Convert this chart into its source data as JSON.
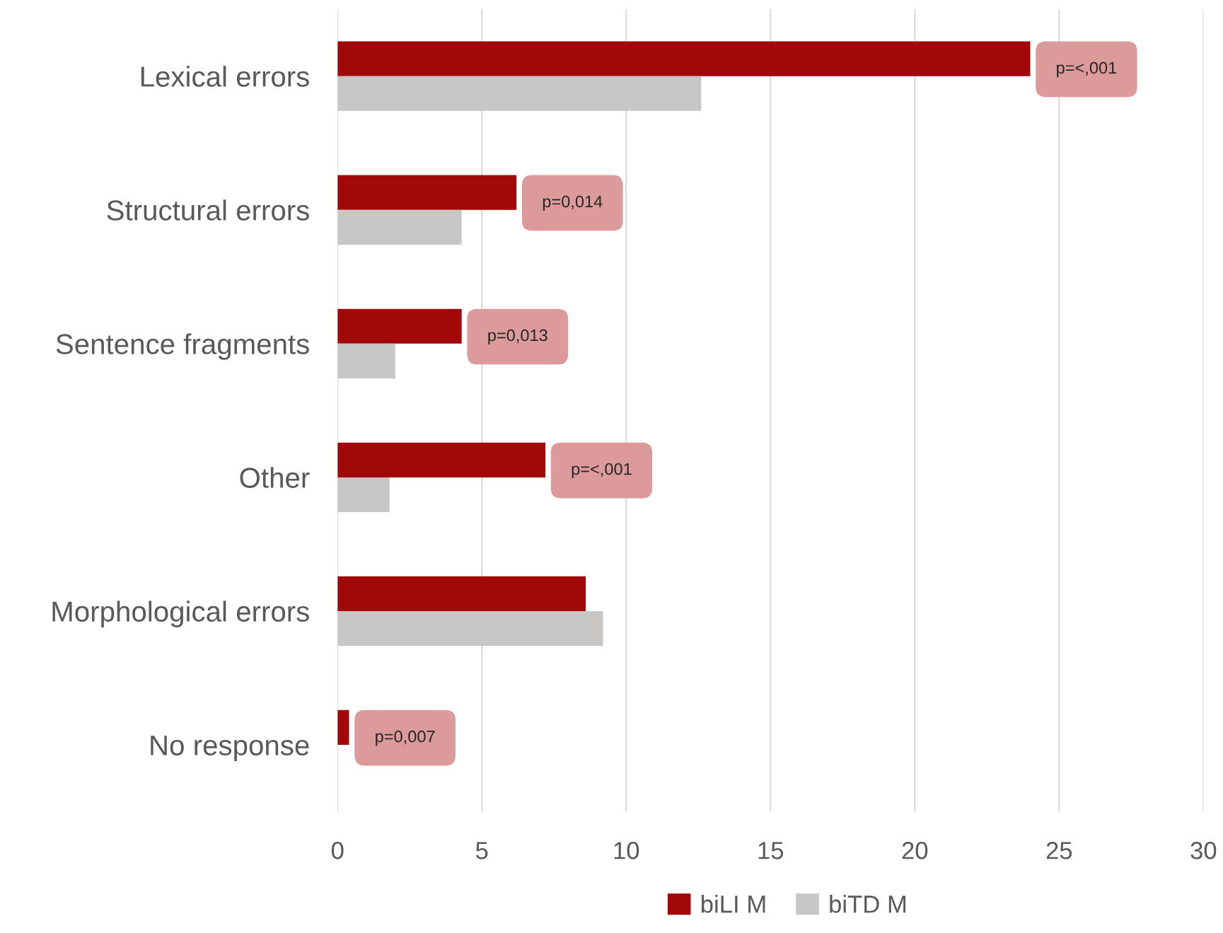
{
  "chart_data": {
    "type": "bar",
    "orientation": "horizontal",
    "categories": [
      "Lexical errors",
      "Structural errors",
      "Sentence fragments",
      "Other",
      "Morphological errors",
      "No response"
    ],
    "series": [
      {
        "name": "biLI M",
        "color": "#a30808",
        "values": [
          24.0,
          6.2,
          4.3,
          7.2,
          8.6,
          0.4
        ]
      },
      {
        "name": "biTD M",
        "color": "#c8c7c6",
        "values": [
          12.6,
          4.3,
          2.0,
          1.8,
          9.2,
          null
        ]
      }
    ],
    "xlim": [
      0,
      30
    ],
    "xticks": [
      0,
      5,
      10,
      15,
      20,
      25,
      30
    ],
    "grid": "x",
    "legend": "bottom",
    "annotations": [
      {
        "text": "p=<,001",
        "x": 24.0,
        "y": "Lexical errors"
      },
      {
        "text": "p=0,014",
        "x": 6.2,
        "y": "Structural errors"
      },
      {
        "text": "p=0,013",
        "x": 4.3,
        "y": "Sentence fragments"
      },
      {
        "text": "p=<,001",
        "x": 7.2,
        "y": "Other"
      },
      {
        "text": "p=0,007",
        "x": 0.4,
        "y": "No response"
      }
    ]
  }
}
